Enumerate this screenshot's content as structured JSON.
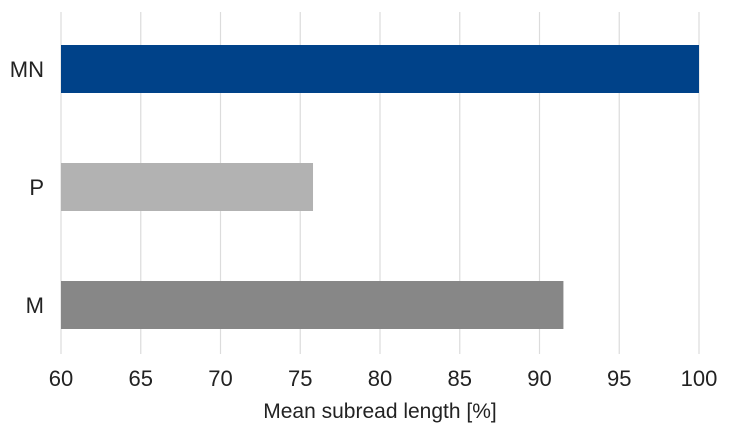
{
  "chart_data": {
    "type": "bar",
    "orientation": "horizontal",
    "categories": [
      "MN",
      "P",
      "M"
    ],
    "values": [
      100,
      75.8,
      91.5
    ],
    "colors": [
      "#004289",
      "#b2b2b2",
      "#878787"
    ],
    "xlabel": "Mean subread length [%]",
    "ylabel": "",
    "xlim": [
      60,
      100
    ],
    "xticks": [
      "60",
      "65",
      "70",
      "75",
      "80",
      "85",
      "90",
      "95",
      "100"
    ],
    "grid": "vertical",
    "legend": "none"
  }
}
